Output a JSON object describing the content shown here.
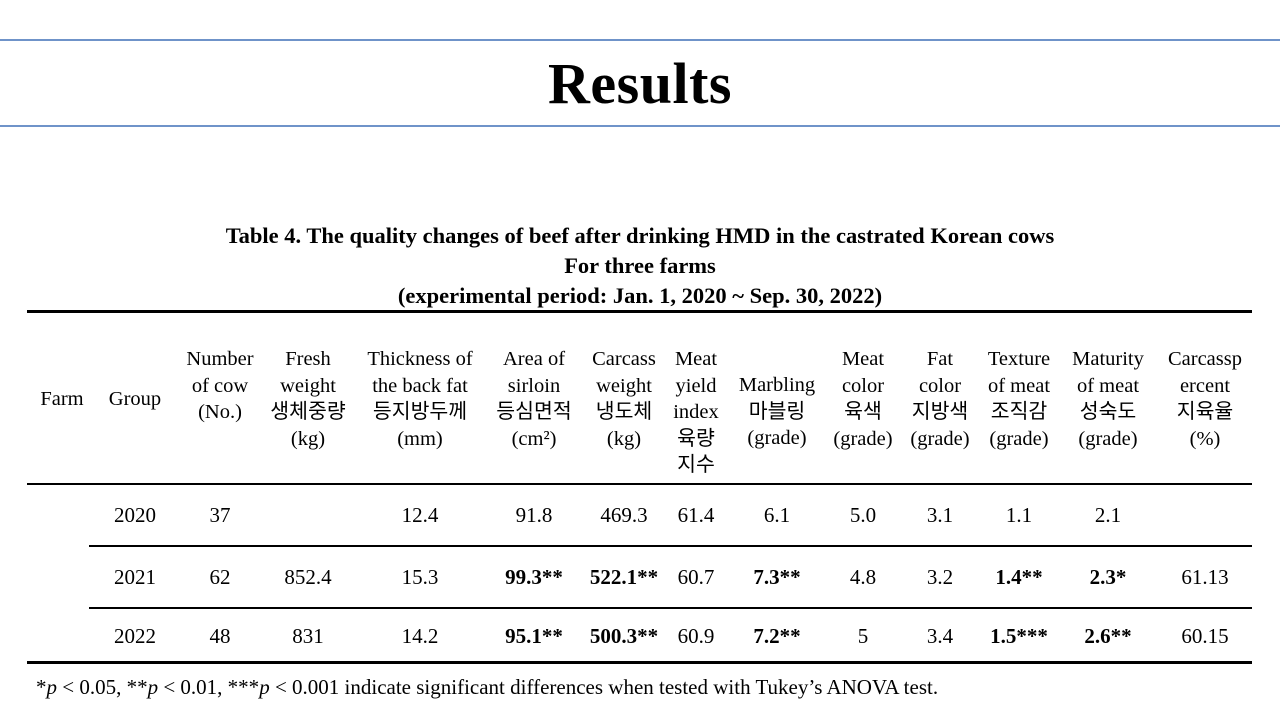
{
  "slide": {
    "title": "Results"
  },
  "table": {
    "caption_line1": "Table  4. The quality changes of beef after drinking HMD in the castrated Korean cows",
    "caption_line2": "For three farms",
    "caption_line3": "(experimental period: Jan. 1, 2020 ~ Sep. 30, 2022)",
    "headers": {
      "farm": [
        "Farm"
      ],
      "group": [
        "Group"
      ],
      "number_of_cow": [
        "Number",
        "of cow",
        "(No.)"
      ],
      "fresh_weight": [
        "Fresh",
        "weight",
        "생체중량",
        "(kg)"
      ],
      "back_fat": [
        "Thickness of",
        "the back fat",
        "등지방두께",
        "(mm)"
      ],
      "sirloin_area": [
        "Area of",
        "sirloin",
        "등심면적",
        "(cm²)"
      ],
      "carcass_weight": [
        "Carcass",
        "weight",
        "냉도체",
        "(kg)"
      ],
      "meat_yield": [
        "Meat",
        "yield",
        "index",
        "육량",
        "지수"
      ],
      "marbling": [
        "Marbling",
        "마블링",
        "(grade)"
      ],
      "meat_color": [
        "Meat",
        "color",
        "육색",
        "(grade)"
      ],
      "fat_color": [
        "Fat",
        "color",
        "지방색",
        "(grade)"
      ],
      "texture": [
        "Texture",
        "of meat",
        "조직감",
        "(grade)"
      ],
      "maturity": [
        "Maturity",
        "of meat",
        "성숙도",
        "(grade)"
      ],
      "carcass_percent": [
        "Carcassp",
        "ercent",
        "지육율",
        "(%)"
      ]
    },
    "rows": [
      {
        "farm": "",
        "group": "2020",
        "number_of_cow": "37",
        "fresh_weight": "",
        "back_fat": "12.4",
        "sirloin_area": "91.8",
        "carcass_weight": "469.3",
        "meat_yield": "61.4",
        "marbling": "6.1",
        "meat_color": "5.0",
        "fat_color": "3.1",
        "texture": "1.1",
        "maturity": "2.1",
        "carcass_percent": ""
      },
      {
        "farm": "",
        "group": "2021",
        "number_of_cow": "62",
        "fresh_weight": "852.4",
        "back_fat": "15.3",
        "sirloin_area": "99.3**",
        "carcass_weight": "522.1**",
        "meat_yield": "60.7",
        "marbling": "7.3**",
        "meat_color": "4.8",
        "fat_color": "3.2",
        "texture": "1.4**",
        "maturity": "2.3*",
        "carcass_percent": "61.13"
      },
      {
        "farm": "",
        "group": "2022",
        "number_of_cow": "48",
        "fresh_weight": "831",
        "back_fat": "14.2",
        "sirloin_area": "95.1**",
        "carcass_weight": "500.3**",
        "meat_yield": "60.9",
        "marbling": "7.2**",
        "meat_color": "5",
        "fat_color": "3.4",
        "texture": "1.5***",
        "maturity": "2.6**",
        "carcass_percent": "60.15"
      }
    ],
    "footnote": {
      "star1": "*",
      "p": "p",
      "part1": " < 0.05, **",
      "part2": " < 0.01, ***",
      "part3": " < 0.001 indicate significant differences when tested with Tukey’s ANOVA test."
    }
  }
}
